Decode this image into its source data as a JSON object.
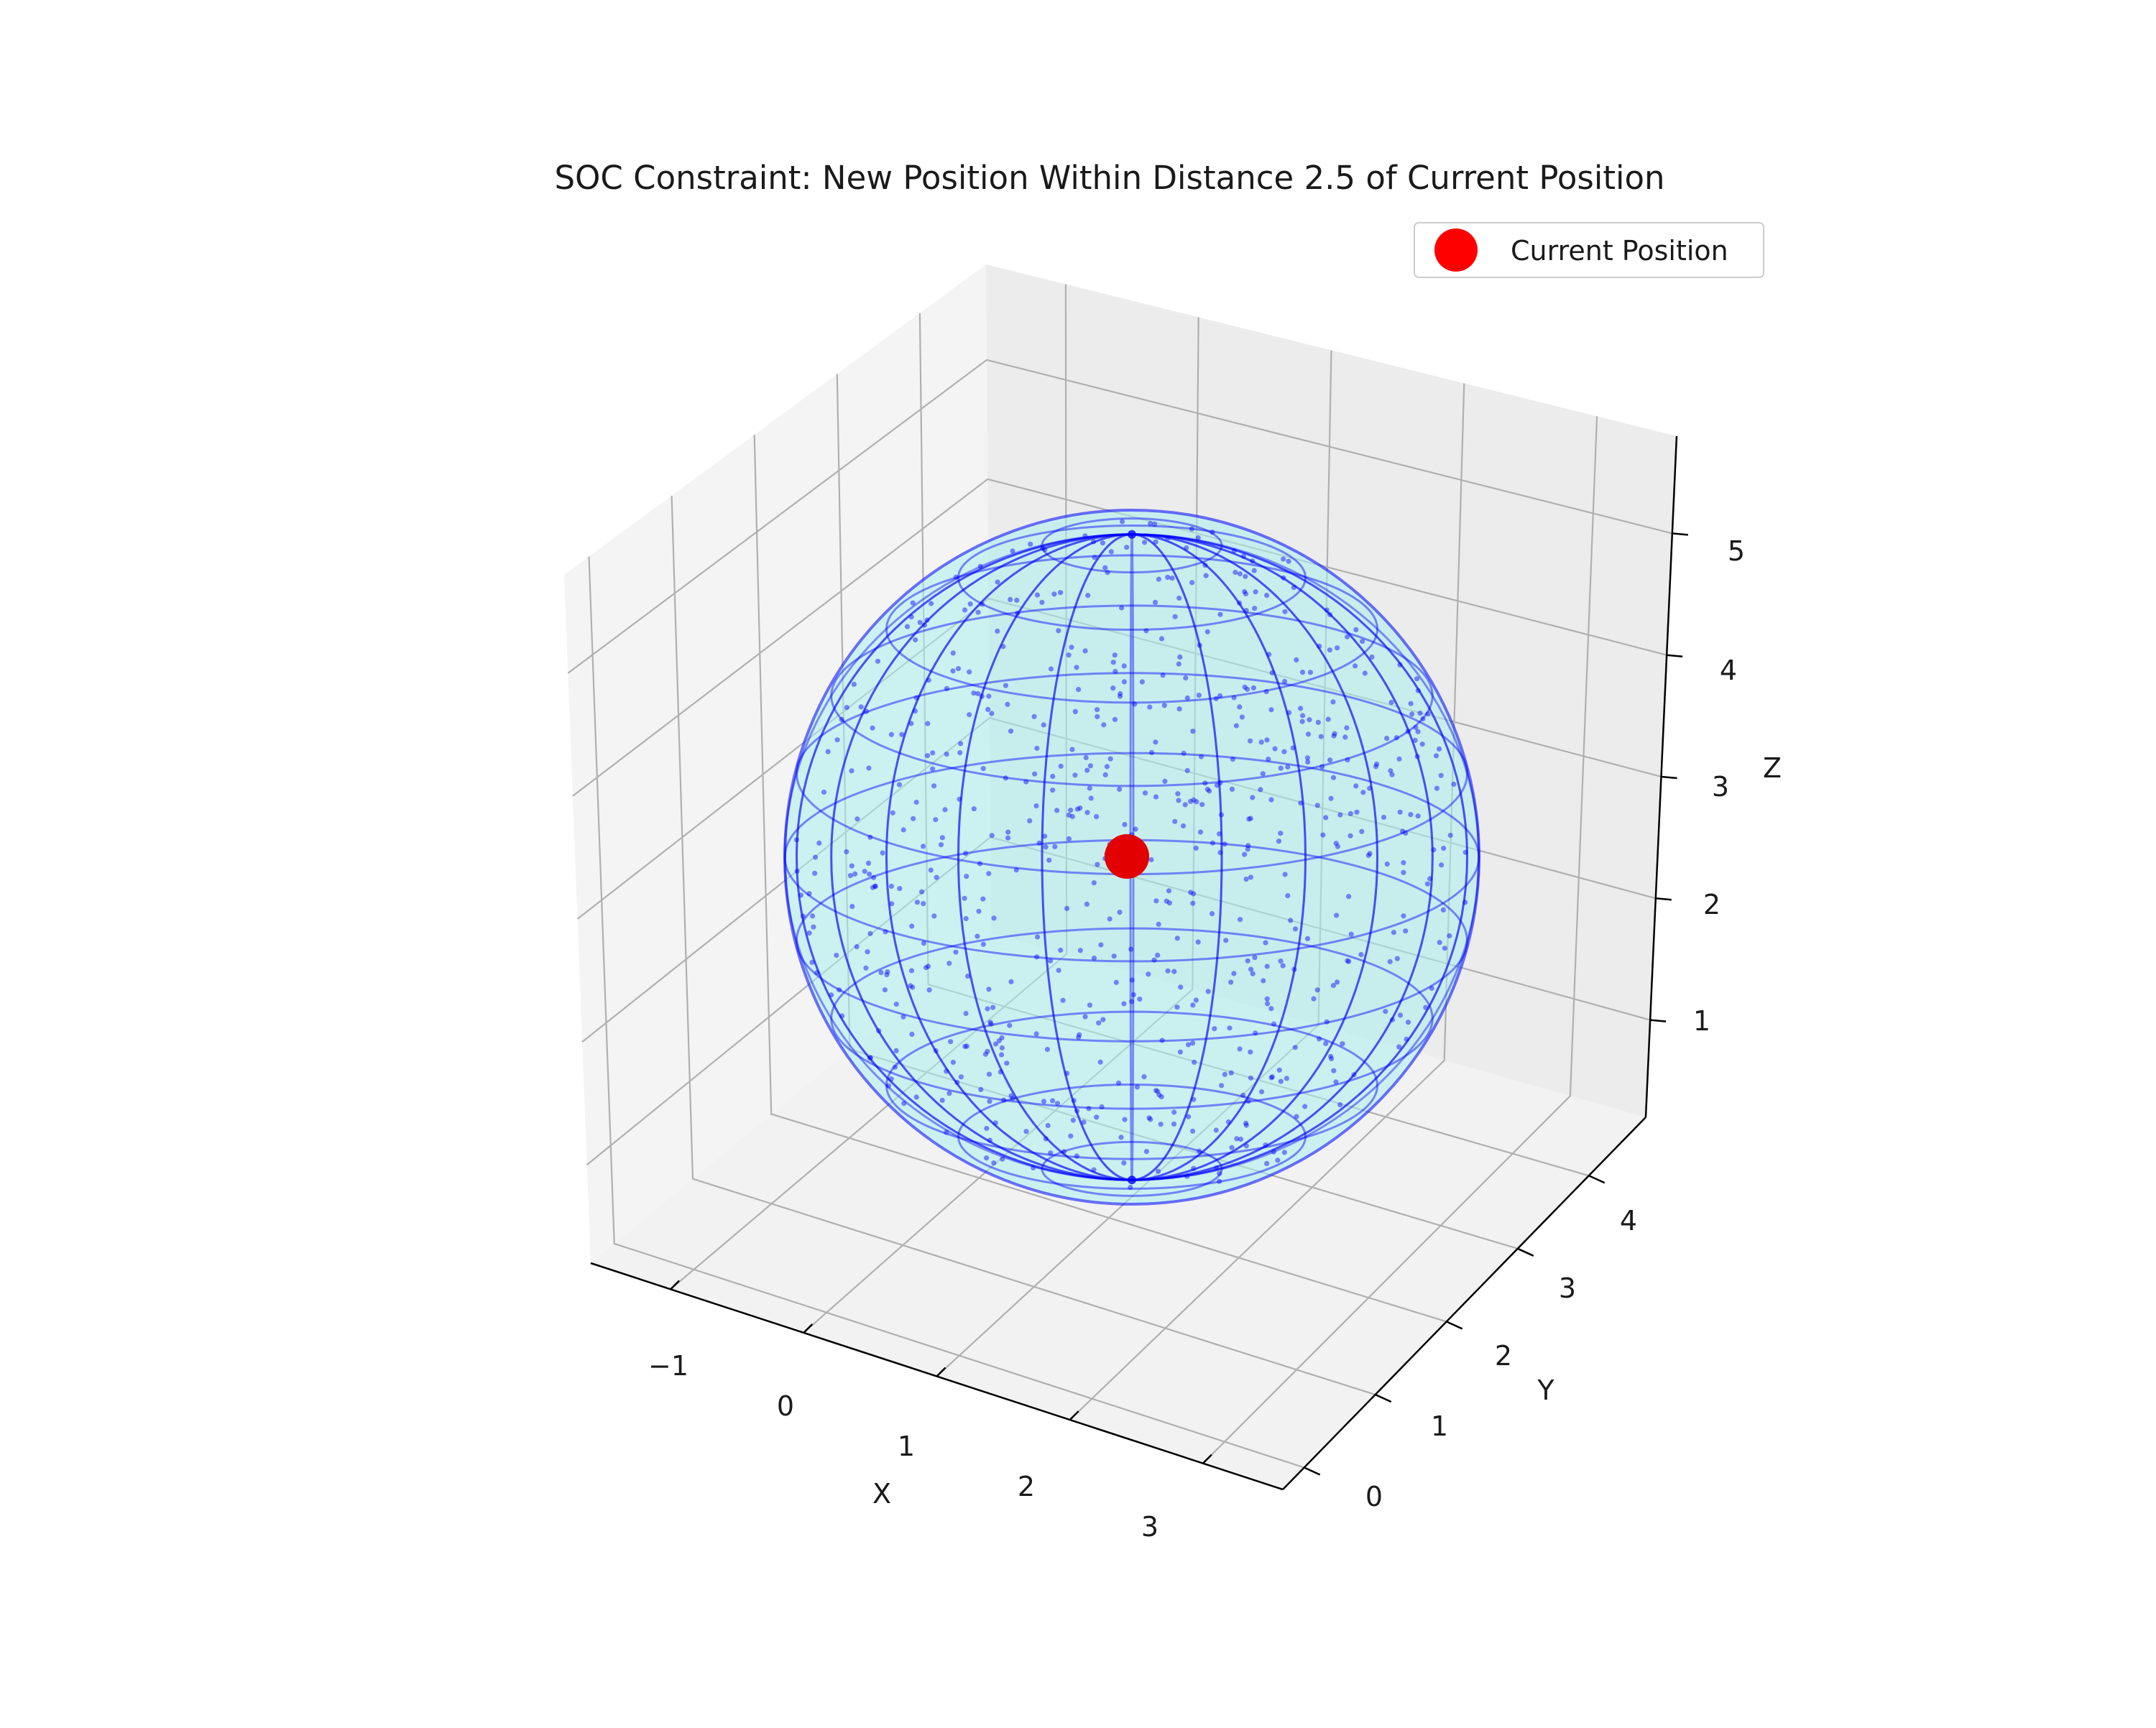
{
  "chart_data": {
    "type": "scatter3d",
    "title": "SOC Constraint: New Position Within Distance 2.5 of Current Position",
    "xlabel": "X",
    "ylabel": "Y",
    "zlabel": "Z",
    "xlim": [
      -1.6,
      3.6
    ],
    "ylim": [
      -0.3,
      4.8
    ],
    "zlim": [
      0.2,
      5.8
    ],
    "x_ticks": [
      "−1",
      "0",
      "1",
      "2",
      "3"
    ],
    "y_ticks": [
      "0",
      "1",
      "2",
      "3",
      "4"
    ],
    "z_ticks": [
      "1",
      "2",
      "3",
      "4",
      "5"
    ],
    "grid": true,
    "legend_placement": "top-right",
    "series": [
      {
        "name": "Current Position",
        "marker": "circle",
        "color": "#ff0000",
        "points": [
          [
            1.0,
            2.0,
            3.0
          ]
        ]
      }
    ],
    "constraint_region": {
      "shape": "sphere",
      "center": [
        1.0,
        2.0,
        3.0
      ],
      "radius": 2.5,
      "wireframe_color": "#0000ff",
      "fill_color": "#aaf0ee",
      "sample_point_color": "#0000ff"
    }
  }
}
